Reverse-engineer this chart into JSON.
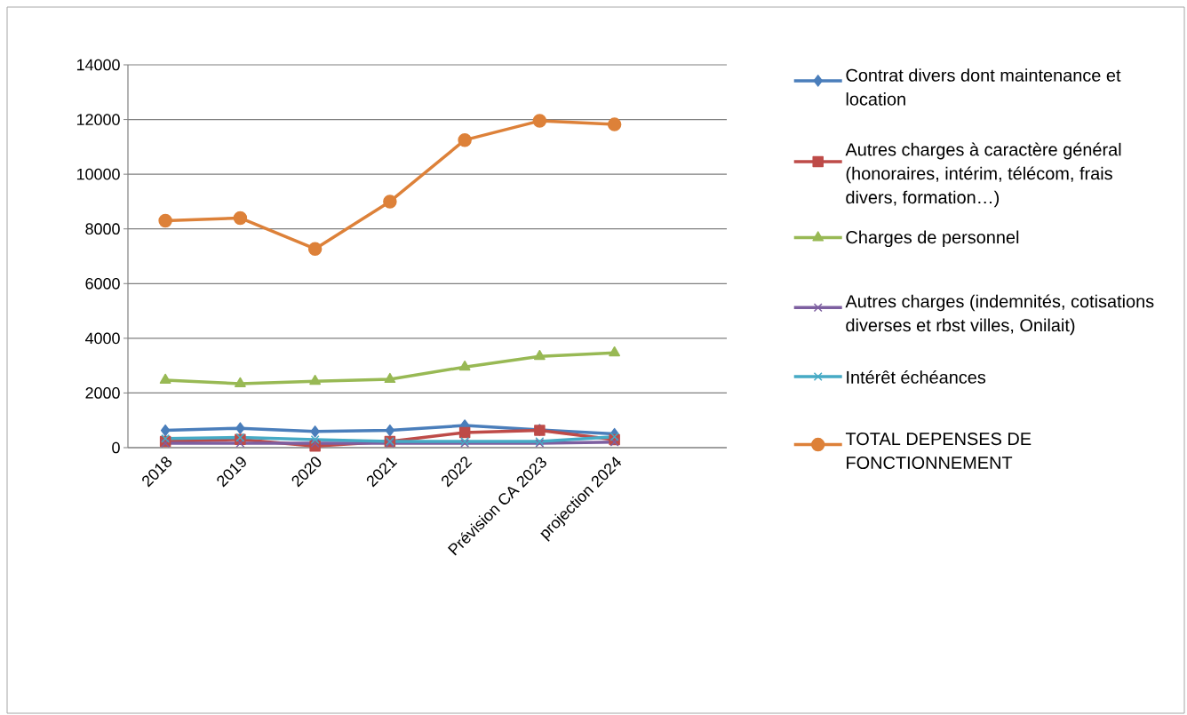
{
  "chart_data": {
    "type": "line",
    "categories": [
      "2018",
      "2019",
      "2020",
      "2021",
      "2022",
      "Prévision CA  2023",
      "projection 2024",
      null
    ],
    "series": [
      {
        "name": "Contrat divers dont maintenance et location",
        "color": "#4a7ebb",
        "marker": "diamond",
        "values": [
          630,
          710,
          590,
          630,
          810,
          650,
          500,
          null
        ]
      },
      {
        "name": "Autres charges à caractère général (honoraires, intérim, télécom, frais divers, formation…)",
        "color": "#be4b48",
        "marker": "square",
        "values": [
          230,
          300,
          60,
          230,
          550,
          630,
          290,
          null
        ]
      },
      {
        "name": "Charges de personnel",
        "color": "#98b954",
        "marker": "triangle",
        "values": [
          2470,
          2340,
          2430,
          2500,
          2950,
          3340,
          3470,
          null
        ]
      },
      {
        "name": "Autres charges (indemnités, cotisations diverses et rbst villes, Onilait)",
        "color": "#7d5fa0",
        "marker": "cross",
        "values": [
          160,
          160,
          160,
          160,
          160,
          160,
          200,
          null
        ]
      },
      {
        "name": "Intérêt échéances",
        "color": "#46aac5",
        "marker": "cross",
        "values": [
          330,
          370,
          290,
          230,
          230,
          230,
          400,
          null
        ]
      },
      {
        "name": "TOTAL DEPENSES DE FONCTIONNEMENT",
        "color": "#dd8139",
        "marker": "circle",
        "values": [
          8300,
          8400,
          7270,
          9000,
          11250,
          11950,
          11820,
          null
        ]
      }
    ],
    "ylim": [
      0,
      14000
    ],
    "yticks": [
      0,
      2000,
      4000,
      6000,
      8000,
      10000,
      12000,
      14000
    ],
    "grid": "y",
    "legend": "right",
    "line_style": "solid"
  }
}
